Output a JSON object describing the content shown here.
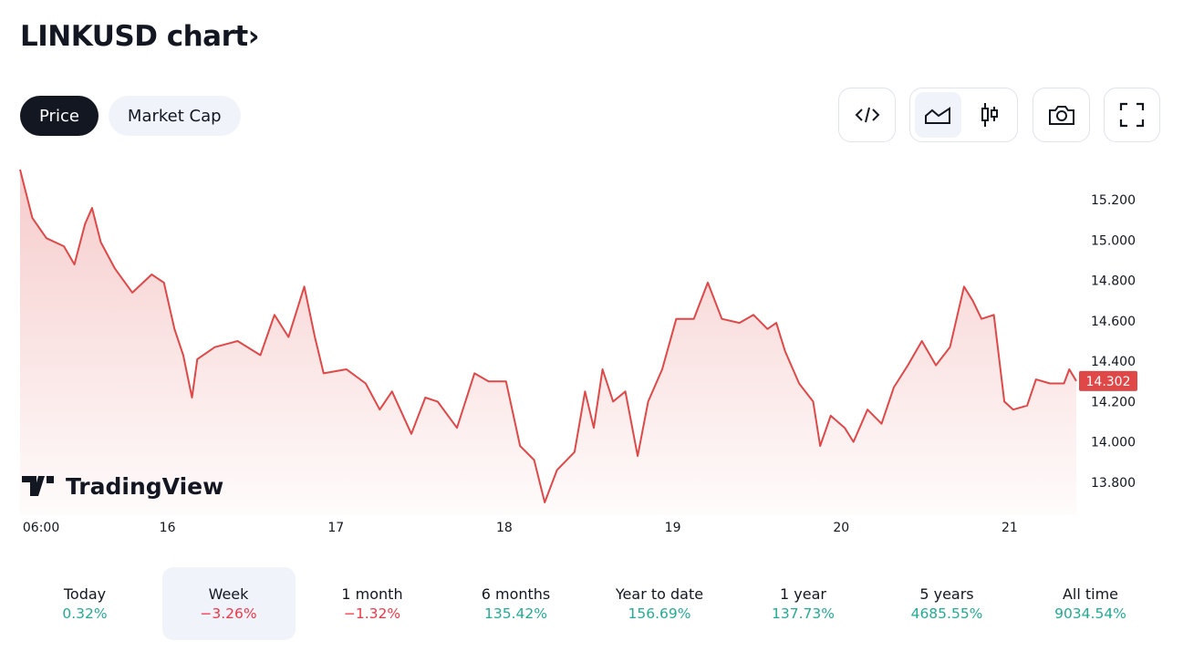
{
  "header": {
    "title": "LINKUSD chart",
    "chevron": "›"
  },
  "tabs": [
    {
      "label": "Price",
      "active": true
    },
    {
      "label": "Market Cap",
      "active": false
    }
  ],
  "toolbar": {
    "icons": [
      "embed-code-icon",
      "area-chart-icon",
      "candlestick-icon",
      "camera-icon",
      "fullscreen-icon"
    ],
    "selected": "area-chart-icon"
  },
  "logo": {
    "text": "TradingView"
  },
  "colors": {
    "line": "#e04848",
    "up": "#22ab94",
    "down": "#f23645",
    "badge": "#e04848"
  },
  "chart_data": {
    "type": "area",
    "title": "",
    "xlabel": "",
    "ylabel": "",
    "x_tick_labels": [
      "06:00",
      "16",
      "17",
      "18",
      "19",
      "20",
      "21"
    ],
    "x_ticks": [
      "15 06:00",
      "16 00:00",
      "17 00:00",
      "18 00:00",
      "19 00:00",
      "20 00:00",
      "21 00:00"
    ],
    "y_tick_labels": [
      "15.200",
      "15.000",
      "14.800",
      "14.600",
      "14.400",
      "14.200",
      "14.000",
      "13.800"
    ],
    "y_ticks": [
      15.2,
      15.0,
      14.8,
      14.6,
      14.4,
      14.2,
      14.0,
      13.8
    ],
    "ylim": [
      13.7,
      15.35
    ],
    "xlim": [
      "15 03:00",
      "21 09:30"
    ],
    "grid": false,
    "last_price_label": "14.302",
    "series": [
      {
        "points": [
          [
            "15 03:00",
            15.35
          ],
          [
            "15 04:45",
            15.11
          ],
          [
            "15 06:45",
            15.01
          ],
          [
            "15 09:15",
            14.97
          ],
          [
            "15 10:45",
            14.88
          ],
          [
            "15 12:15",
            15.08
          ],
          [
            "15 13:15",
            15.16
          ],
          [
            "15 14:30",
            14.99
          ],
          [
            "15 16:30",
            14.86
          ],
          [
            "15 19:00",
            14.74
          ],
          [
            "15 21:45",
            14.83
          ],
          [
            "15 23:30",
            14.79
          ],
          [
            "16 01:00",
            14.56
          ],
          [
            "16 02:15",
            14.43
          ],
          [
            "16 03:30",
            14.22
          ],
          [
            "16 04:15",
            14.41
          ],
          [
            "16 06:45",
            14.47
          ],
          [
            "16 10:00",
            14.5
          ],
          [
            "16 13:15",
            14.43
          ],
          [
            "16 15:15",
            14.63
          ],
          [
            "16 17:15",
            14.52
          ],
          [
            "16 19:30",
            14.77
          ],
          [
            "16 21:00",
            14.52
          ],
          [
            "16 22:15",
            14.34
          ],
          [
            "17 01:30",
            14.36
          ],
          [
            "17 04:15",
            14.29
          ],
          [
            "17 06:15",
            14.16
          ],
          [
            "17 08:00",
            14.25
          ],
          [
            "17 10:45",
            14.04
          ],
          [
            "17 12:45",
            14.22
          ],
          [
            "17 14:30",
            14.2
          ],
          [
            "17 17:15",
            14.07
          ],
          [
            "17 19:45",
            14.34
          ],
          [
            "17 21:45",
            14.3
          ],
          [
            "18 00:15",
            14.3
          ],
          [
            "18 02:15",
            13.98
          ],
          [
            "18 04:15",
            13.91
          ],
          [
            "18 05:45",
            13.7
          ],
          [
            "18 07:30",
            13.86
          ],
          [
            "18 10:00",
            13.95
          ],
          [
            "18 11:30",
            14.25
          ],
          [
            "18 12:45",
            14.07
          ],
          [
            "18 14:00",
            14.36
          ],
          [
            "18 15:30",
            14.2
          ],
          [
            "18 17:15",
            14.25
          ],
          [
            "18 19:00",
            13.93
          ],
          [
            "18 20:30",
            14.2
          ],
          [
            "18 22:30",
            14.36
          ],
          [
            "19 00:30",
            14.61
          ],
          [
            "19 03:00",
            14.61
          ],
          [
            "19 05:00",
            14.79
          ],
          [
            "19 07:00",
            14.61
          ],
          [
            "19 09:30",
            14.59
          ],
          [
            "19 11:30",
            14.63
          ],
          [
            "19 13:30",
            14.56
          ],
          [
            "19 14:45",
            14.59
          ],
          [
            "19 16:00",
            14.45
          ],
          [
            "19 18:00",
            14.29
          ],
          [
            "19 20:00",
            14.2
          ],
          [
            "19 21:00",
            13.98
          ],
          [
            "19 22:30",
            14.13
          ],
          [
            "20 00:30",
            14.07
          ],
          [
            "20 01:45",
            14.0
          ],
          [
            "20 03:45",
            14.16
          ],
          [
            "20 05:45",
            14.09
          ],
          [
            "20 07:30",
            14.27
          ],
          [
            "20 09:30",
            14.38
          ],
          [
            "20 11:30",
            14.5
          ],
          [
            "20 13:30",
            14.38
          ],
          [
            "20 15:30",
            14.47
          ],
          [
            "20 17:30",
            14.77
          ],
          [
            "20 18:45",
            14.7
          ],
          [
            "20 20:00",
            14.61
          ],
          [
            "20 21:45",
            14.63
          ],
          [
            "20 23:15",
            14.2
          ],
          [
            "21 00:30",
            14.16
          ],
          [
            "21 02:30",
            14.18
          ],
          [
            "21 03:45",
            14.31
          ],
          [
            "21 05:45",
            14.29
          ],
          [
            "21 07:45",
            14.29
          ],
          [
            "21 08:30",
            14.36
          ],
          [
            "21 09:30",
            14.302
          ]
        ]
      }
    ]
  },
  "performance": [
    {
      "label": "Today",
      "value": "0.32%",
      "dir": "up"
    },
    {
      "label": "Week",
      "value": "−3.26%",
      "dir": "down",
      "selected": true
    },
    {
      "label": "1 month",
      "value": "−1.32%",
      "dir": "down"
    },
    {
      "label": "6 months",
      "value": "135.42%",
      "dir": "up"
    },
    {
      "label": "Year to date",
      "value": "156.69%",
      "dir": "up"
    },
    {
      "label": "1 year",
      "value": "137.73%",
      "dir": "up"
    },
    {
      "label": "5 years",
      "value": "4685.55%",
      "dir": "up"
    },
    {
      "label": "All time",
      "value": "9034.54%",
      "dir": "up"
    }
  ]
}
